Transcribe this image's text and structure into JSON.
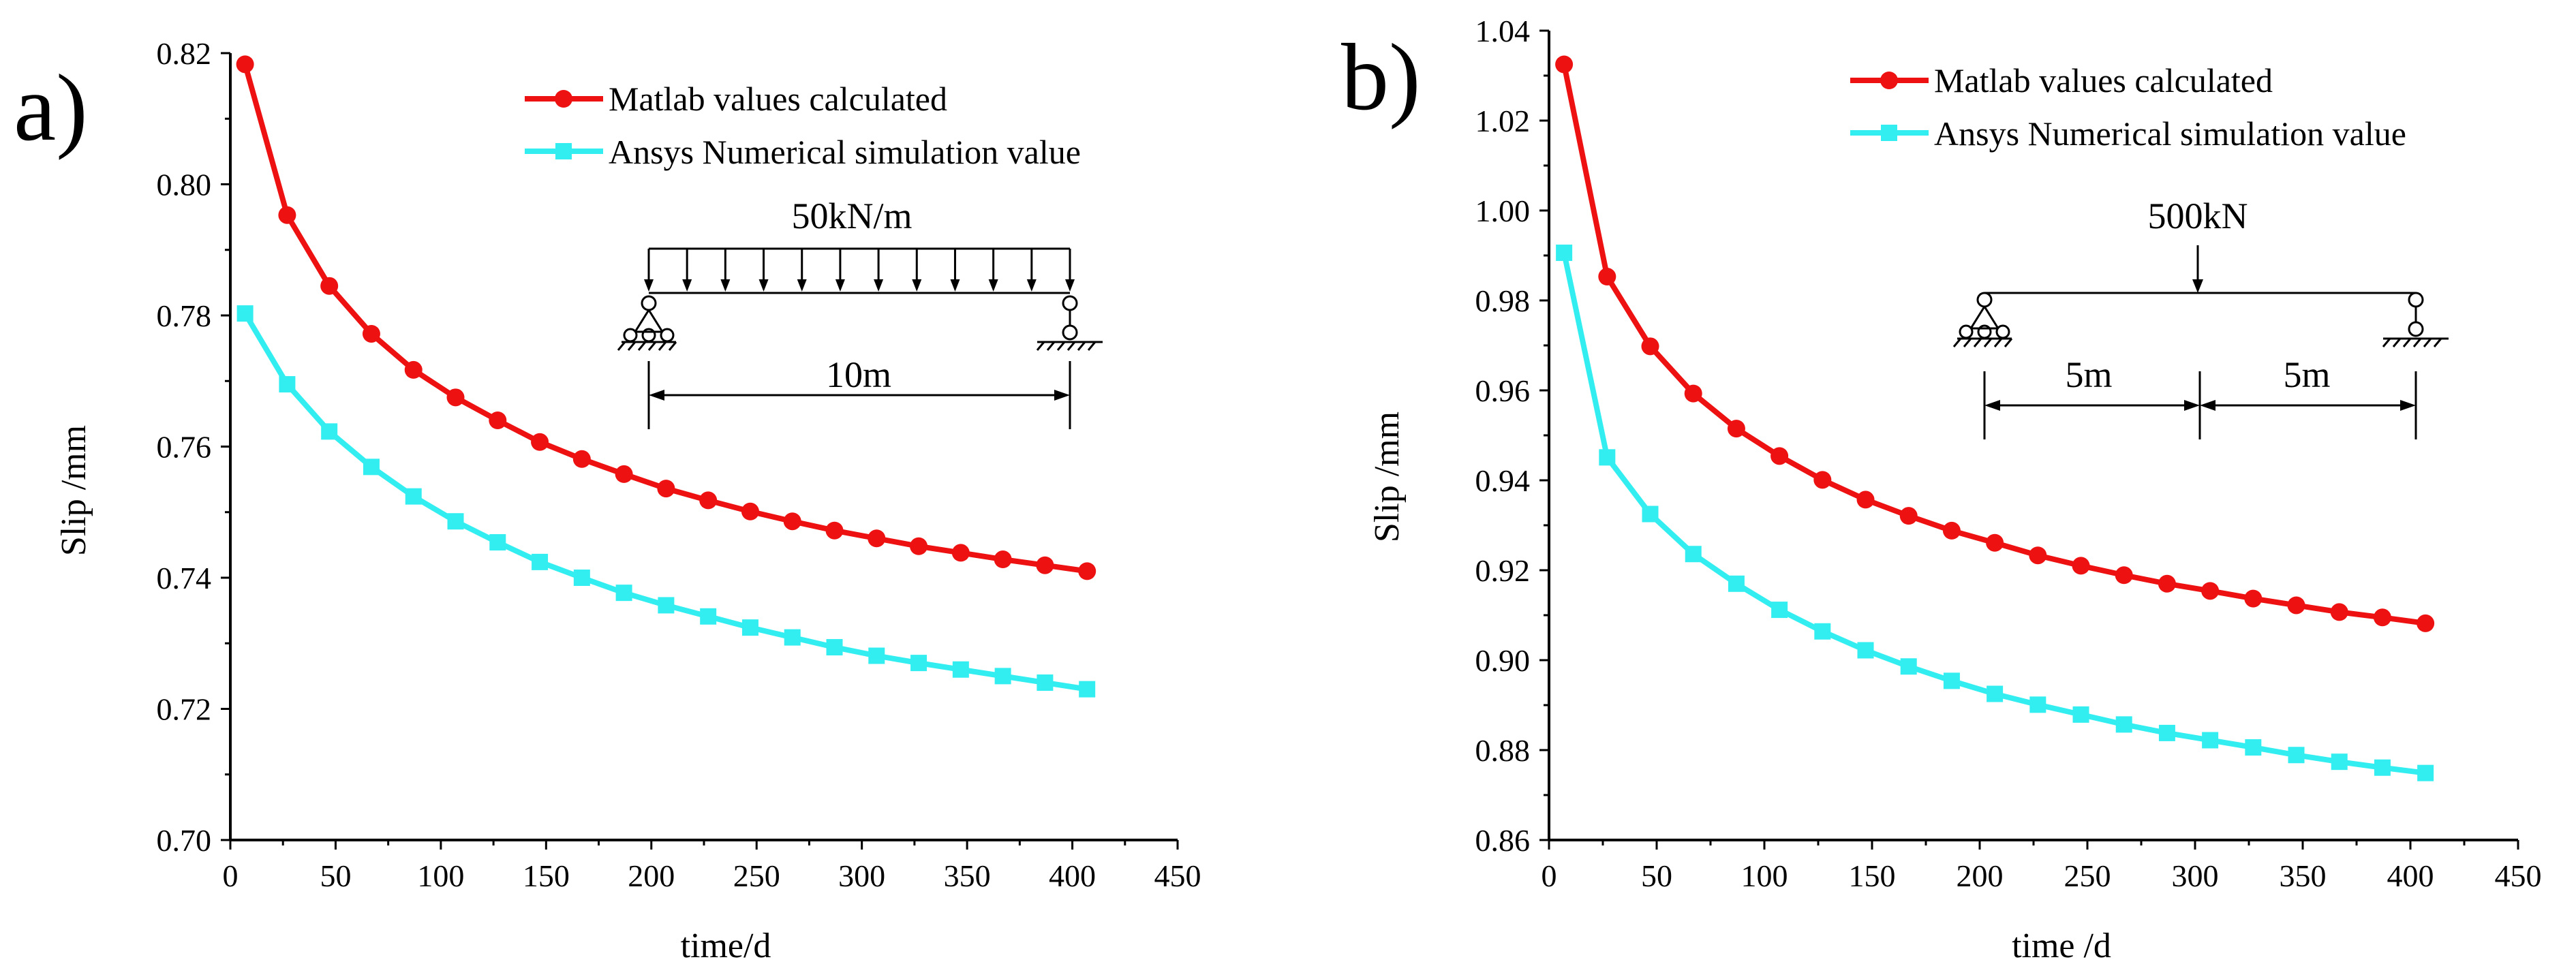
{
  "chart_data": [
    {
      "panel_label": "a)",
      "type": "line",
      "xlabel": "time/d",
      "ylabel": "Slip /mm",
      "xlim": [
        0,
        450
      ],
      "ylim": [
        0.7,
        0.82
      ],
      "xticks": [
        "0",
        "50",
        "100",
        "150",
        "200",
        "250",
        "300",
        "350",
        "400",
        "450"
      ],
      "yticks": [
        "0.70",
        "0.72",
        "0.74",
        "0.76",
        "0.78",
        "0.80",
        "0.82"
      ],
      "x": [
        7,
        27,
        47,
        67,
        87,
        107,
        127,
        147,
        167,
        187,
        207,
        227,
        247,
        267,
        287,
        307,
        327,
        347,
        367,
        387,
        407
      ],
      "series": [
        {
          "name": "Matlab values calculated",
          "color": "#ee1111",
          "marker": "circle",
          "values": [
            0.8183,
            0.7953,
            0.7845,
            0.7772,
            0.7717,
            0.7675,
            0.764,
            0.7607,
            0.7581,
            0.7558,
            0.7536,
            0.7518,
            0.7501,
            0.7486,
            0.7472,
            0.746,
            0.7448,
            0.7438,
            0.7428,
            0.7419,
            0.741
          ]
        },
        {
          "name": "Ansys Numerical simulation value",
          "color": "#33eef0",
          "marker": "square",
          "values": [
            0.7803,
            0.7695,
            0.7623,
            0.7569,
            0.7524,
            0.7486,
            0.7454,
            0.7424,
            0.74,
            0.7377,
            0.7358,
            0.7341,
            0.7324,
            0.7309,
            0.7294,
            0.7281,
            0.727,
            0.726,
            0.725,
            0.724,
            0.723
          ]
        }
      ],
      "legend_position": "top-right",
      "inset": {
        "load_label": "50kN/m",
        "span_labels": [
          "10m"
        ]
      }
    },
    {
      "panel_label": "b)",
      "type": "line",
      "xlabel": "time /d",
      "ylabel": "Slip /mm",
      "xlim": [
        0,
        450
      ],
      "ylim": [
        0.86,
        1.04
      ],
      "xticks": [
        "0",
        "50",
        "100",
        "150",
        "200",
        "250",
        "300",
        "350",
        "400",
        "450"
      ],
      "yticks": [
        "0.86",
        "0.88",
        "0.90",
        "0.92",
        "0.94",
        "0.96",
        "0.98",
        "1.00",
        "1.02",
        "1.04"
      ],
      "x": [
        7,
        27,
        47,
        67,
        87,
        107,
        127,
        147,
        167,
        187,
        207,
        227,
        247,
        267,
        287,
        307,
        327,
        347,
        367,
        387,
        407
      ],
      "series": [
        {
          "name": "Matlab values calculated",
          "color": "#ee1111",
          "marker": "circle",
          "values": [
            1.0325,
            0.9853,
            0.9698,
            0.9593,
            0.9515,
            0.9454,
            0.9401,
            0.9357,
            0.9321,
            0.9288,
            0.9261,
            0.9233,
            0.921,
            0.9189,
            0.917,
            0.9154,
            0.9137,
            0.9122,
            0.9107,
            0.9095,
            0.9082
          ]
        },
        {
          "name": "Ansys Numerical simulation value",
          "color": "#33eef0",
          "marker": "square",
          "values": [
            0.9906,
            0.9451,
            0.9325,
            0.9236,
            0.917,
            0.9112,
            0.9064,
            0.9022,
            0.8986,
            0.8954,
            0.8925,
            0.8901,
            0.8879,
            0.8857,
            0.8838,
            0.8822,
            0.8806,
            0.8789,
            0.8774,
            0.8761,
            0.8749
          ]
        }
      ],
      "legend_position": "top-right",
      "inset": {
        "load_label": "500kN",
        "span_labels": [
          "5m",
          "5m"
        ]
      }
    }
  ]
}
